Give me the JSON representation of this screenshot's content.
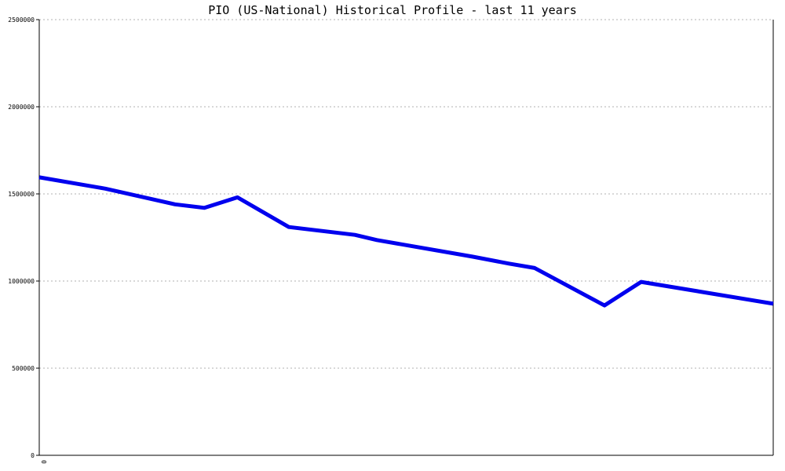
{
  "chart_data": {
    "type": "line",
    "title": "PIO (US-National) Historical Profile - last 11 years",
    "xlabel": "",
    "ylabel": "",
    "ylim": [
      0,
      2500000
    ],
    "yticks": [
      "0",
      "500000",
      "1000000",
      "1500000",
      "2000000",
      "2500000"
    ],
    "xticks": [
      "0"
    ],
    "grid": "horizontal dotted",
    "series": [
      {
        "color": "#0000ee",
        "points": [
          {
            "x": 0.0,
            "y": 1595000
          },
          {
            "x": 0.9,
            "y": 1530000
          },
          {
            "x": 1.85,
            "y": 1440000
          },
          {
            "x": 2.25,
            "y": 1420000
          },
          {
            "x": 2.7,
            "y": 1480000
          },
          {
            "x": 3.4,
            "y": 1310000
          },
          {
            "x": 4.3,
            "y": 1265000
          },
          {
            "x": 4.6,
            "y": 1235000
          },
          {
            "x": 5.9,
            "y": 1140000
          },
          {
            "x": 6.4,
            "y": 1100000
          },
          {
            "x": 6.75,
            "y": 1075000
          },
          {
            "x": 7.7,
            "y": 860000
          },
          {
            "x": 8.2,
            "y": 995000
          },
          {
            "x": 10.0,
            "y": 870000
          }
        ]
      }
    ]
  }
}
